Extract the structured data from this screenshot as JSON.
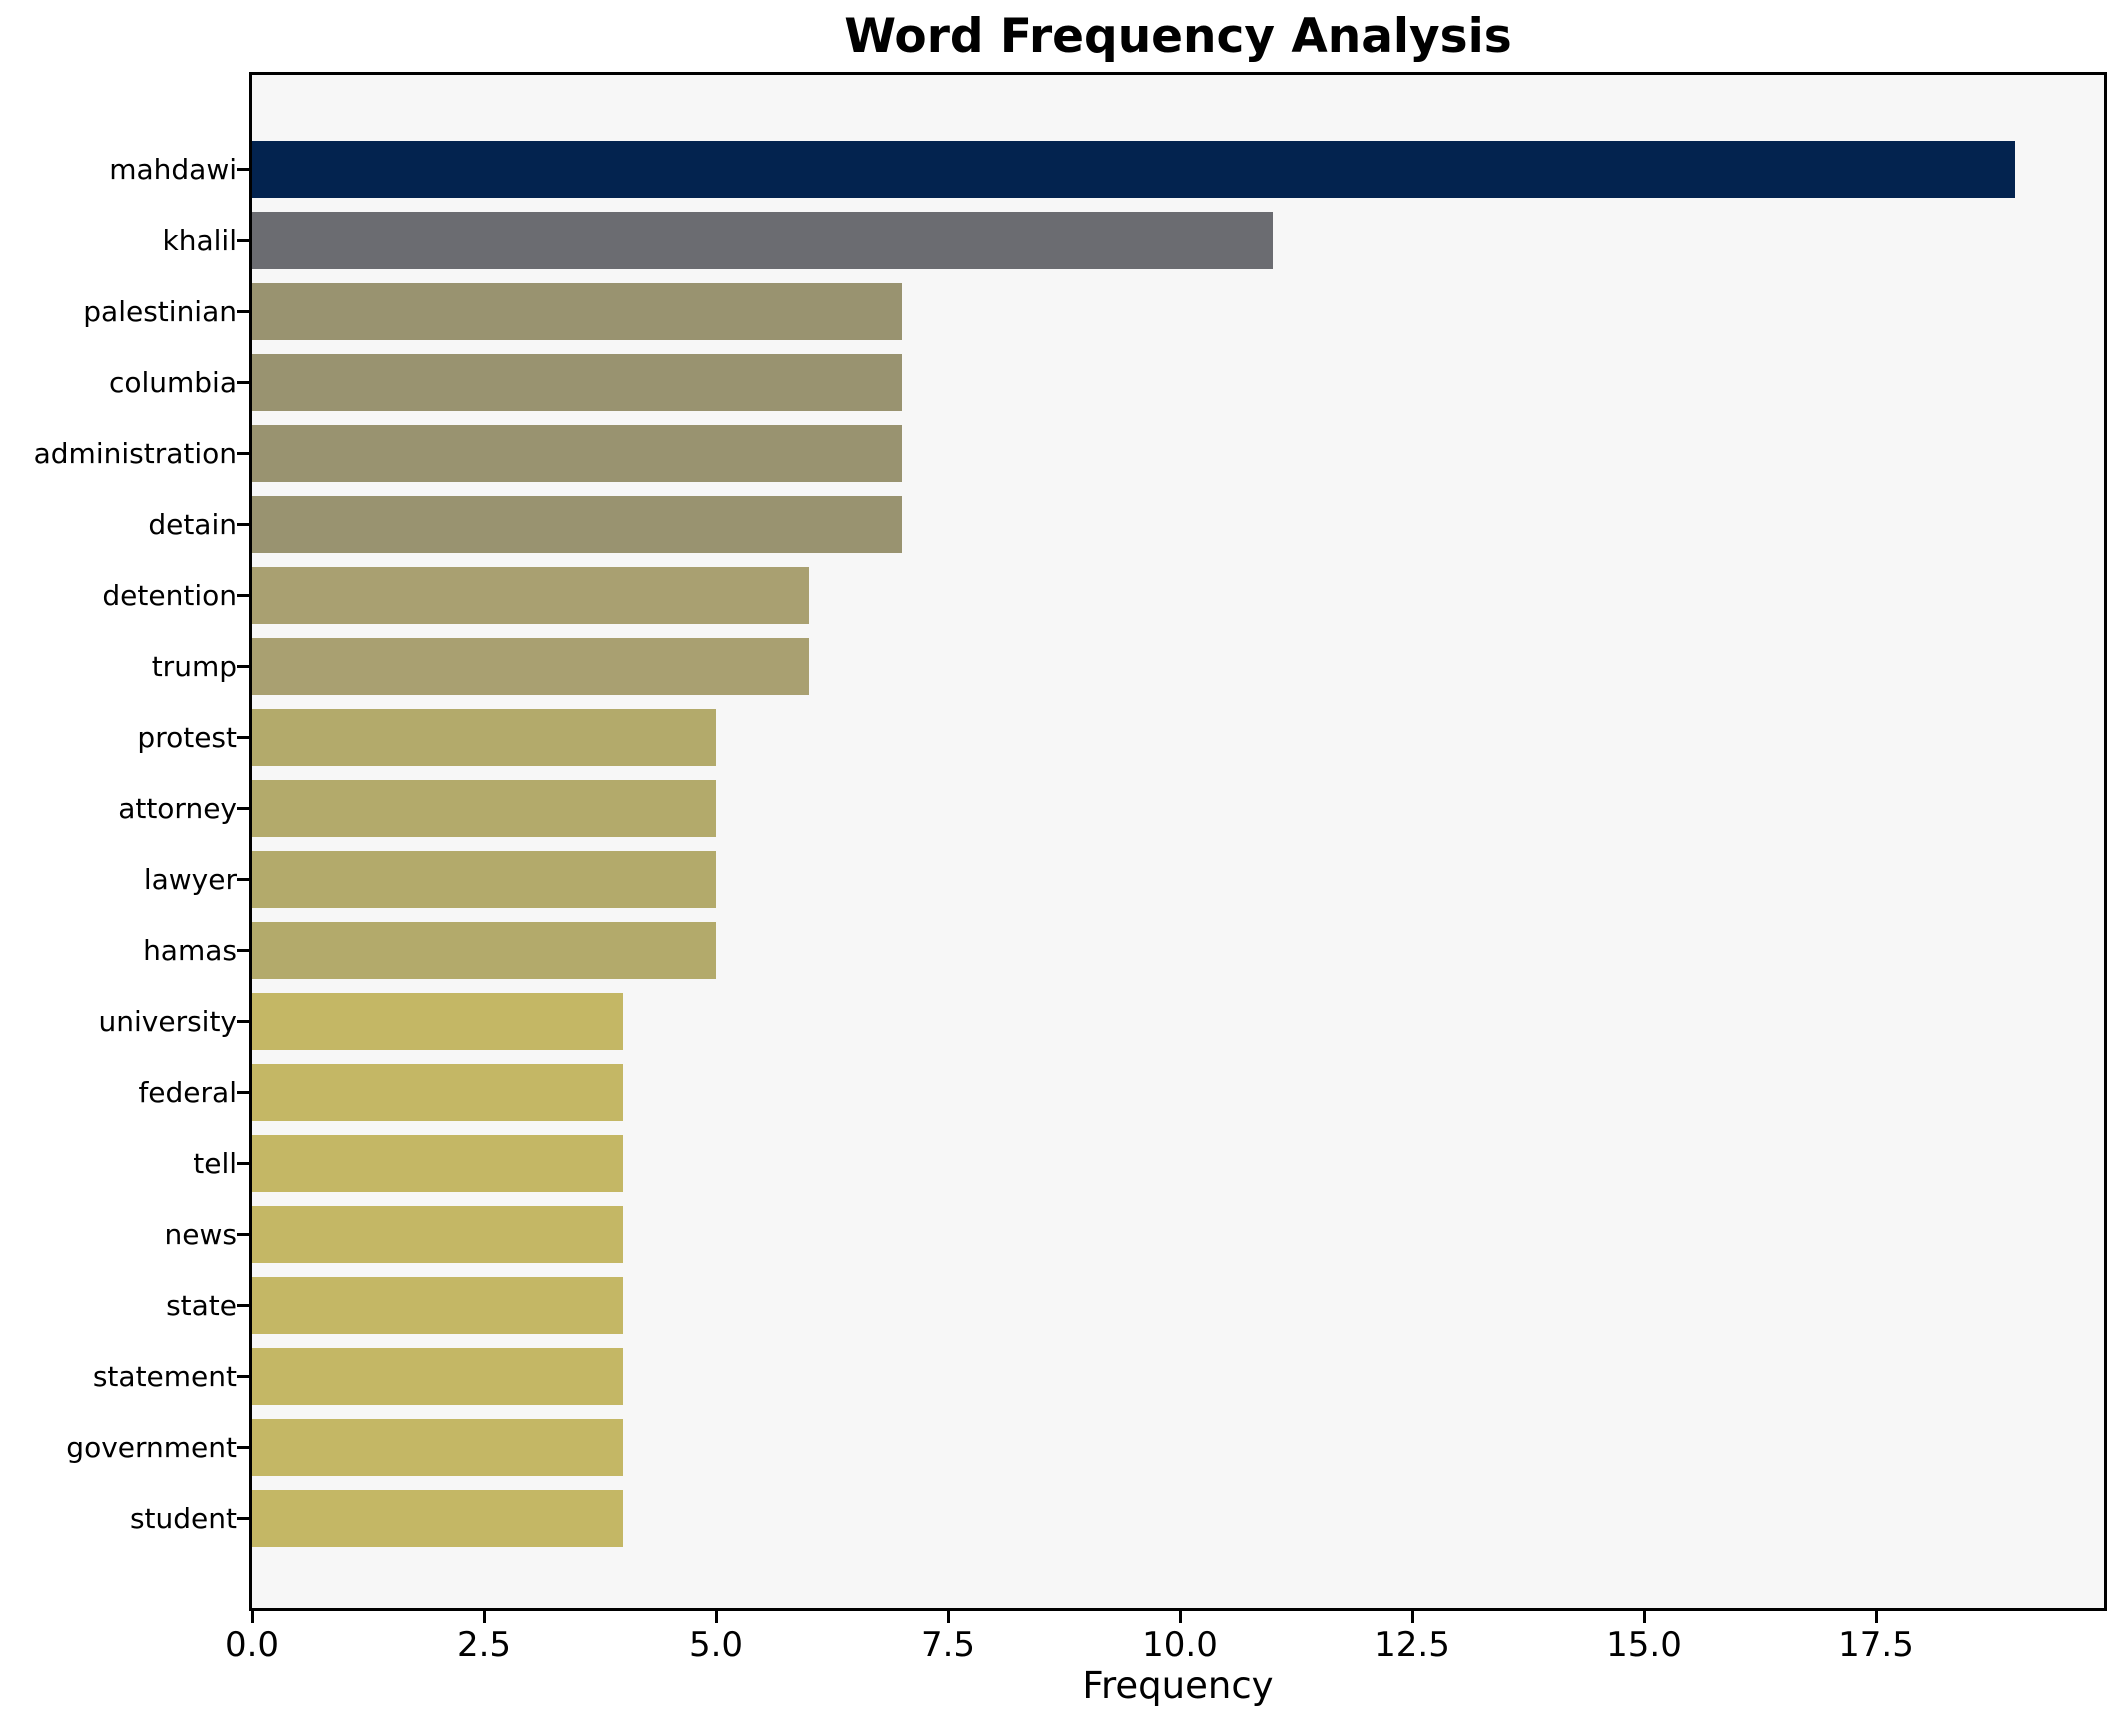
{
  "title": "Word Frequency Analysis",
  "colors": {
    "page_bg": "#ffffff",
    "plot_bg": "#f7f7f7",
    "axis": "#000000",
    "text": "#000000"
  },
  "chart_data": {
    "type": "bar",
    "orientation": "horizontal",
    "title": "Word Frequency Analysis",
    "xlabel": "Frequency",
    "ylabel": "",
    "xlim": [
      0,
      20
    ],
    "grid": false,
    "legend": false,
    "xticks": [
      "0.0",
      "2.5",
      "5.0",
      "7.5",
      "10.0",
      "12.5",
      "15.0",
      "17.5"
    ],
    "categories": [
      "mahdawi",
      "khalil",
      "palestinian",
      "columbia",
      "administration",
      "detain",
      "detention",
      "trump",
      "protest",
      "attorney",
      "lawyer",
      "hamas",
      "university",
      "federal",
      "tell",
      "news",
      "state",
      "statement",
      "government",
      "student"
    ],
    "values": [
      19,
      11,
      7,
      7,
      7,
      7,
      6,
      6,
      5,
      5,
      5,
      5,
      4,
      4,
      4,
      4,
      4,
      4,
      4,
      4
    ],
    "bar_colors": [
      "#03234f",
      "#6b6c71",
      "#999370",
      "#999370",
      "#999370",
      "#999370",
      "#a9a071",
      "#a9a071",
      "#b3aa6b",
      "#b3aa6b",
      "#b3aa6b",
      "#b3aa6b",
      "#c4b765",
      "#c4b765",
      "#c4b765",
      "#c4b765",
      "#c4b765",
      "#c4b765",
      "#c4b765",
      "#c4b765"
    ]
  }
}
